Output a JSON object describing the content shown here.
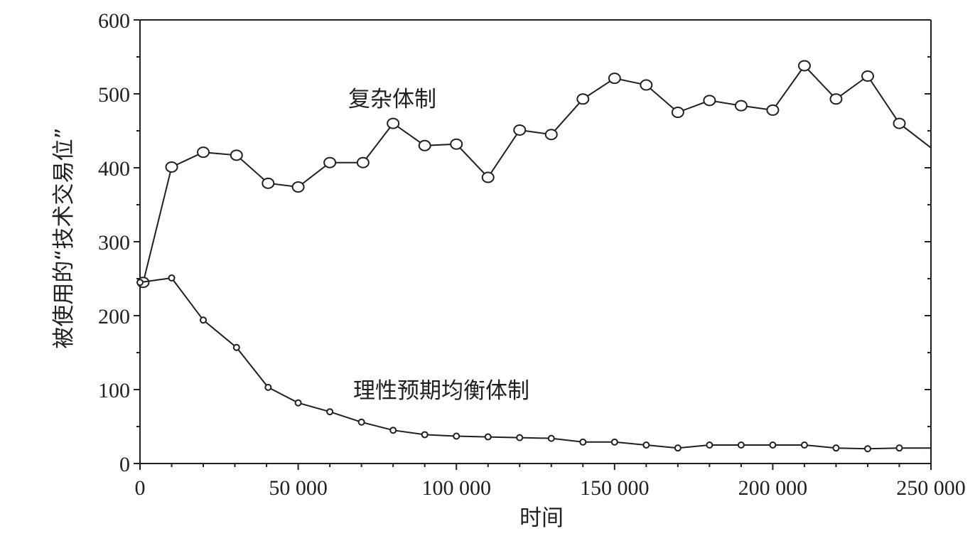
{
  "chart_data": {
    "type": "line",
    "xlabel": "时间",
    "ylabel": "被使用的“技术交易位”",
    "xlim": [
      0,
      250000
    ],
    "ylim": [
      0,
      600
    ],
    "x_ticks": [
      {
        "value": 0,
        "label": "0"
      },
      {
        "value": 50000,
        "label": "50 000"
      },
      {
        "value": 100000,
        "label": "100 000"
      },
      {
        "value": 150000,
        "label": "150 000"
      },
      {
        "value": 200000,
        "label": "200 000"
      },
      {
        "value": 250000,
        "label": "250 000"
      }
    ],
    "y_ticks": [
      {
        "value": 0,
        "label": "0"
      },
      {
        "value": 100,
        "label": "100"
      },
      {
        "value": 200,
        "label": "200"
      },
      {
        "value": 300,
        "label": "300"
      },
      {
        "value": 400,
        "label": "400"
      },
      {
        "value": 500,
        "label": "500"
      },
      {
        "value": 600,
        "label": "600"
      }
    ],
    "grid": false,
    "series": [
      {
        "name": "复杂体制",
        "marker": "large-open-ellipse",
        "points": [
          {
            "x": 1000,
            "y": 245
          },
          {
            "x": 10000,
            "y": 401
          },
          {
            "x": 20000,
            "y": 421
          },
          {
            "x": 30500,
            "y": 417
          },
          {
            "x": 40500,
            "y": 379
          },
          {
            "x": 50000,
            "y": 374
          },
          {
            "x": 60000,
            "y": 407
          },
          {
            "x": 70500,
            "y": 407
          },
          {
            "x": 80000,
            "y": 460
          },
          {
            "x": 90000,
            "y": 430
          },
          {
            "x": 100000,
            "y": 432
          },
          {
            "x": 110000,
            "y": 387
          },
          {
            "x": 120000,
            "y": 451
          },
          {
            "x": 130000,
            "y": 445
          },
          {
            "x": 140000,
            "y": 493
          },
          {
            "x": 150000,
            "y": 521
          },
          {
            "x": 160000,
            "y": 512
          },
          {
            "x": 170000,
            "y": 475
          },
          {
            "x": 180000,
            "y": 491
          },
          {
            "x": 190000,
            "y": 484
          },
          {
            "x": 200000,
            "y": 478
          },
          {
            "x": 210000,
            "y": 538
          },
          {
            "x": 220000,
            "y": 493
          },
          {
            "x": 230000,
            "y": 524
          },
          {
            "x": 240000,
            "y": 460
          },
          {
            "x": 250000,
            "y": 427,
            "marker": false
          }
        ]
      },
      {
        "name": "理性预期均衡体制",
        "marker": "small-open-circle",
        "points": [
          {
            "x": 0,
            "y": 245
          },
          {
            "x": 10000,
            "y": 251
          },
          {
            "x": 20000,
            "y": 194
          },
          {
            "x": 30500,
            "y": 157
          },
          {
            "x": 40500,
            "y": 103
          },
          {
            "x": 50000,
            "y": 82
          },
          {
            "x": 60000,
            "y": 70
          },
          {
            "x": 70000,
            "y": 56
          },
          {
            "x": 80000,
            "y": 45
          },
          {
            "x": 90000,
            "y": 39
          },
          {
            "x": 100000,
            "y": 37
          },
          {
            "x": 110000,
            "y": 36
          },
          {
            "x": 120000,
            "y": 35
          },
          {
            "x": 130000,
            "y": 34
          },
          {
            "x": 140000,
            "y": 29
          },
          {
            "x": 150000,
            "y": 29
          },
          {
            "x": 160000,
            "y": 25
          },
          {
            "x": 170000,
            "y": 21
          },
          {
            "x": 180000,
            "y": 25
          },
          {
            "x": 190000,
            "y": 25
          },
          {
            "x": 200000,
            "y": 25
          },
          {
            "x": 210000,
            "y": 25
          },
          {
            "x": 220000,
            "y": 21
          },
          {
            "x": 230000,
            "y": 20
          },
          {
            "x": 240000,
            "y": 21
          },
          {
            "x": 250000,
            "y": 21,
            "marker": false
          }
        ]
      }
    ]
  }
}
